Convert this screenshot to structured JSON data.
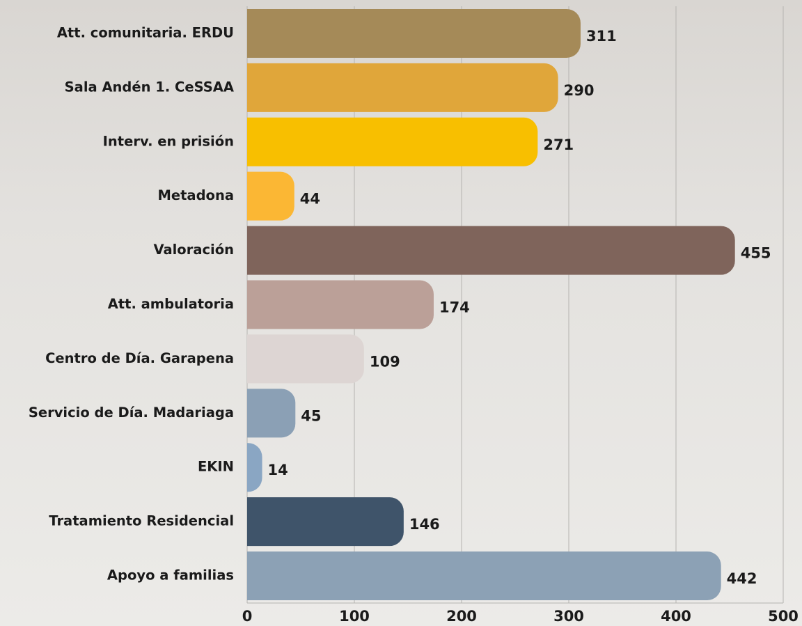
{
  "chart_data": {
    "type": "bar",
    "orientation": "horizontal",
    "categories": [
      "Att. comunitaria. ERDU",
      "Sala Andén 1. CeSSAA",
      "Interv. en prisión",
      "Metadona",
      "Valoración",
      "Att. ambulatoria",
      "Centro de Día. Garapena",
      "Servicio de Día. Madariaga",
      "EKIN",
      "Tratamiento Residencial",
      "Apoyo a familias"
    ],
    "values": [
      311,
      290,
      271,
      44,
      455,
      174,
      109,
      45,
      14,
      146,
      442
    ],
    "colors": [
      "#a58a58",
      "#e0a63a",
      "#f8bf00",
      "#fbb734",
      "#7f645b",
      "#bba098",
      "#ddd5d3",
      "#8ba0b5",
      "#8aa6c3",
      "#3f546a",
      "#8ca1b5"
    ],
    "xlim": [
      0,
      500
    ],
    "xticks": [
      0,
      100,
      200,
      300,
      400,
      500
    ],
    "grid": true
  }
}
